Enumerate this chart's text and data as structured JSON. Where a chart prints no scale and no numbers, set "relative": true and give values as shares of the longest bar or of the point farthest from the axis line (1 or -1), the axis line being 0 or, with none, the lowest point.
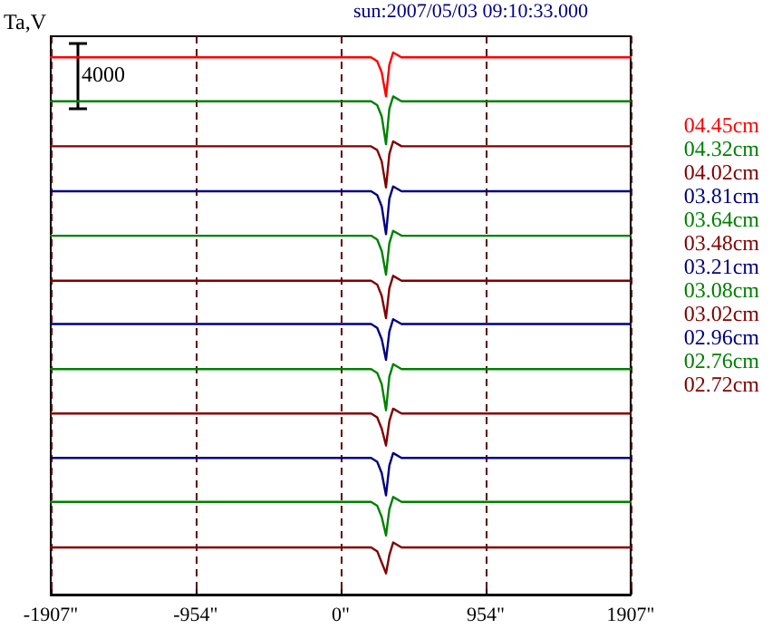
{
  "chart_data": {
    "type": "line",
    "title": "sun:2007/05/03 09:10:33.000",
    "ylabel": "Ta,V",
    "annotations": [
      "4000"
    ],
    "relative": true,
    "x": [
      -1907,
      -954,
      0,
      200,
      240,
      270,
      298,
      320,
      345,
      400,
      954,
      1907
    ],
    "xlim": [
      -1907,
      1907
    ],
    "xticks": [
      {
        "value": -1907,
        "label": "-1907\""
      },
      {
        "value": -954,
        "label": "-954\""
      },
      {
        "value": 0,
        "label": "0\""
      },
      {
        "value": 954,
        "label": "954\""
      },
      {
        "value": 1907,
        "label": "1907\""
      }
    ],
    "grid": "x",
    "legend": "right",
    "marker": "none",
    "line_style": "solid",
    "series": [
      {
        "name": "04.45cm",
        "color": "#ff0000",
        "values": [
          0.991,
          0.991,
          0.991,
          0.991,
          0.984,
          0.963,
          0.919,
          0.977,
          1.0,
          0.991,
          0.991,
          0.991
        ]
      },
      {
        "name": "04.32cm",
        "color": "#008000",
        "values": [
          0.91,
          0.91,
          0.91,
          0.91,
          0.903,
          0.882,
          0.831,
          0.896,
          0.919,
          0.91,
          0.91,
          0.91
        ]
      },
      {
        "name": "04.02cm",
        "color": "#800000",
        "values": [
          0.827,
          0.827,
          0.827,
          0.827,
          0.82,
          0.799,
          0.751,
          0.813,
          0.836,
          0.827,
          0.827,
          0.827
        ]
      },
      {
        "name": "03.81cm",
        "color": "#000080",
        "values": [
          0.744,
          0.744,
          0.744,
          0.744,
          0.737,
          0.716,
          0.665,
          0.73,
          0.753,
          0.744,
          0.744,
          0.744
        ]
      },
      {
        "name": "03.64cm",
        "color": "#008000",
        "values": [
          0.662,
          0.662,
          0.662,
          0.662,
          0.655,
          0.634,
          0.59,
          0.648,
          0.671,
          0.662,
          0.662,
          0.662
        ]
      },
      {
        "name": "03.48cm",
        "color": "#800000",
        "values": [
          0.579,
          0.579,
          0.579,
          0.579,
          0.572,
          0.551,
          0.51,
          0.565,
          0.588,
          0.579,
          0.579,
          0.579
        ]
      },
      {
        "name": "03.21cm",
        "color": "#000080",
        "values": [
          0.499,
          0.499,
          0.499,
          0.499,
          0.492,
          0.471,
          0.433,
          0.485,
          0.508,
          0.499,
          0.499,
          0.499
        ]
      },
      {
        "name": "03.08cm",
        "color": "#008000",
        "values": [
          0.416,
          0.416,
          0.416,
          0.416,
          0.409,
          0.388,
          0.34,
          0.402,
          0.425,
          0.416,
          0.416,
          0.416
        ]
      },
      {
        "name": "03.02cm",
        "color": "#800000",
        "values": [
          0.334,
          0.334,
          0.334,
          0.334,
          0.327,
          0.306,
          0.275,
          0.32,
          0.343,
          0.334,
          0.334,
          0.334
        ]
      },
      {
        "name": "02.96cm",
        "color": "#000080",
        "values": [
          0.252,
          0.252,
          0.252,
          0.252,
          0.245,
          0.224,
          0.183,
          0.238,
          0.261,
          0.252,
          0.252,
          0.252
        ]
      },
      {
        "name": "02.76cm",
        "color": "#008000",
        "values": [
          0.171,
          0.171,
          0.171,
          0.171,
          0.164,
          0.143,
          0.109,
          0.157,
          0.18,
          0.171,
          0.171,
          0.171
        ]
      },
      {
        "name": "02.72cm",
        "color": "#800000",
        "values": [
          0.087,
          0.087,
          0.087,
          0.087,
          0.08,
          0.059,
          0.039,
          0.073,
          0.096,
          0.087,
          0.087,
          0.087
        ]
      }
    ]
  }
}
